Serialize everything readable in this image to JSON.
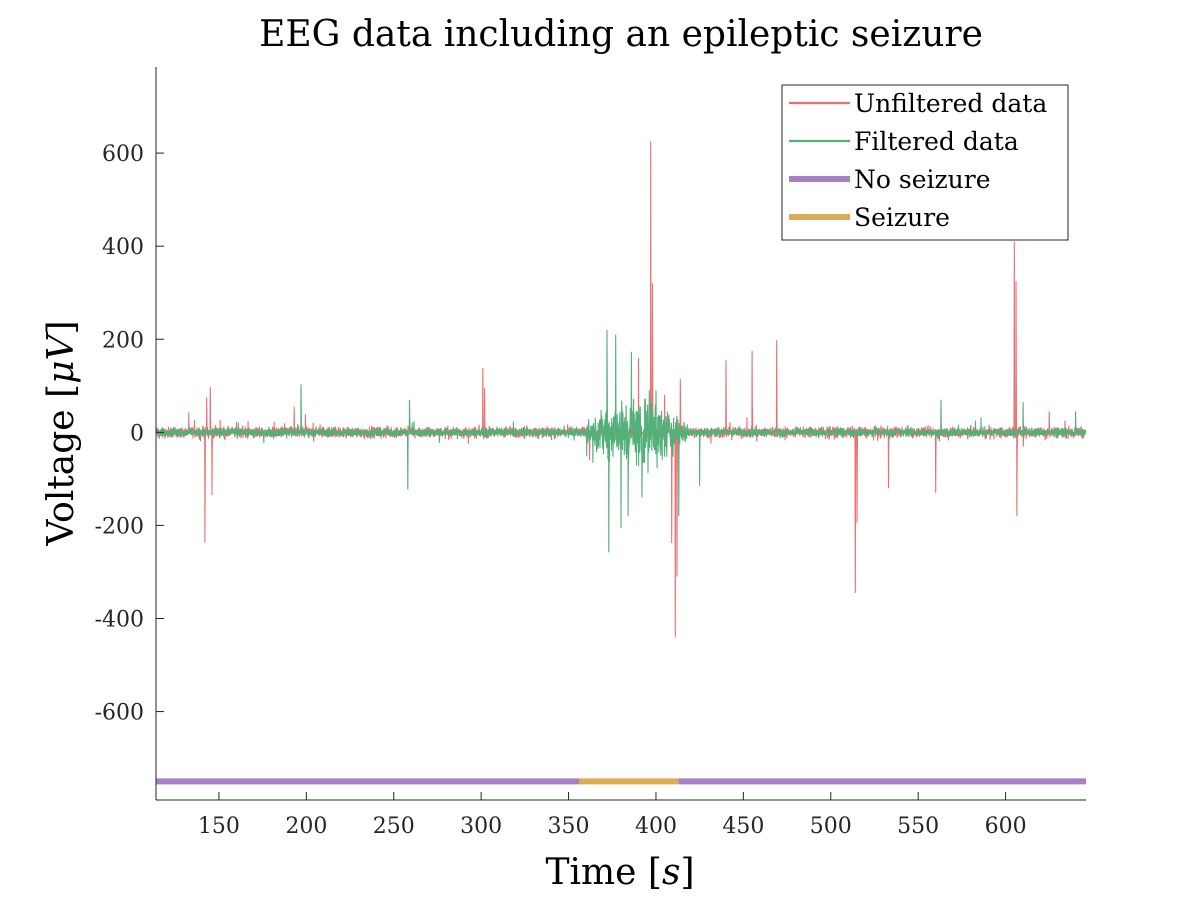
{
  "chart_data": {
    "type": "line",
    "title": "EEG data including an epileptic seizure",
    "xlabel": "Time [",
    "xlabel_var": "s",
    "xlabel_end": "]",
    "ylabel": "Voltage [",
    "ylabel_var": "μV",
    "ylabel_end": "]",
    "xlim": [
      114,
      646
    ],
    "ylim": [
      -790,
      785
    ],
    "xticks": [
      150,
      200,
      250,
      300,
      350,
      400,
      450,
      500,
      550,
      600
    ],
    "yticks": [
      -600,
      -400,
      -200,
      0,
      200,
      400,
      600
    ],
    "grid": false,
    "legend_position": "top-right",
    "series": [
      {
        "name": "Unfiltered data",
        "color": "#ea7070",
        "baseline_amplitude": 18,
        "spikes": [
          {
            "x": 142,
            "y": -237
          },
          {
            "x": 143,
            "y": 75
          },
          {
            "x": 145,
            "y": 97
          },
          {
            "x": 146,
            "y": -135
          },
          {
            "x": 193,
            "y": 55
          },
          {
            "x": 301,
            "y": 138
          },
          {
            "x": 302,
            "y": 95
          },
          {
            "x": 362,
            "y": -60
          },
          {
            "x": 390,
            "y": 160
          },
          {
            "x": 397,
            "y": 625
          },
          {
            "x": 398,
            "y": 320
          },
          {
            "x": 405,
            "y": 80
          },
          {
            "x": 409,
            "y": -238
          },
          {
            "x": 411,
            "y": -440
          },
          {
            "x": 412,
            "y": -310
          },
          {
            "x": 414,
            "y": 115
          },
          {
            "x": 440,
            "y": 155
          },
          {
            "x": 455,
            "y": 175
          },
          {
            "x": 469,
            "y": 198
          },
          {
            "x": 514,
            "y": -345
          },
          {
            "x": 515,
            "y": -195
          },
          {
            "x": 533,
            "y": -120
          },
          {
            "x": 560,
            "y": -130
          },
          {
            "x": 605,
            "y": 410
          },
          {
            "x": 606,
            "y": 325
          },
          {
            "x": 606.5,
            "y": -180
          },
          {
            "x": 625,
            "y": 45
          }
        ]
      },
      {
        "name": "Filtered data",
        "color": "#52b079",
        "baseline_amplitude": 14,
        "spikes": [
          {
            "x": 197,
            "y": 103
          },
          {
            "x": 258,
            "y": -123
          },
          {
            "x": 259,
            "y": 70
          },
          {
            "x": 372,
            "y": 220
          },
          {
            "x": 373,
            "y": -258
          },
          {
            "x": 377,
            "y": 210
          },
          {
            "x": 380,
            "y": -205
          },
          {
            "x": 384,
            "y": -180
          },
          {
            "x": 386,
            "y": 173
          },
          {
            "x": 392,
            "y": -140
          },
          {
            "x": 400,
            "y": 90
          },
          {
            "x": 413,
            "y": -180
          },
          {
            "x": 425,
            "y": -115
          },
          {
            "x": 563,
            "y": 70
          },
          {
            "x": 610,
            "y": 65
          },
          {
            "x": 640,
            "y": 45
          }
        ],
        "burst_range": [
          360,
          418
        ],
        "burst_amplitude": 130
      }
    ],
    "state_bar": {
      "y": -750,
      "segments": [
        {
          "name": "No seizure",
          "from": 114,
          "to": 356,
          "color": "#a77fc2"
        },
        {
          "name": "Seizure",
          "from": 356,
          "to": 413,
          "color": "#dbac55"
        },
        {
          "name": "No seizure",
          "from": 413,
          "to": 646,
          "color": "#a77fc2"
        }
      ]
    },
    "legend": [
      {
        "label": "Unfiltered data",
        "color": "#ea7070",
        "thick": false
      },
      {
        "label": "Filtered data",
        "color": "#52b079",
        "thick": false
      },
      {
        "label": "No seizure",
        "color": "#a77fc2",
        "thick": true
      },
      {
        "label": "Seizure",
        "color": "#dbac55",
        "thick": true
      }
    ]
  }
}
